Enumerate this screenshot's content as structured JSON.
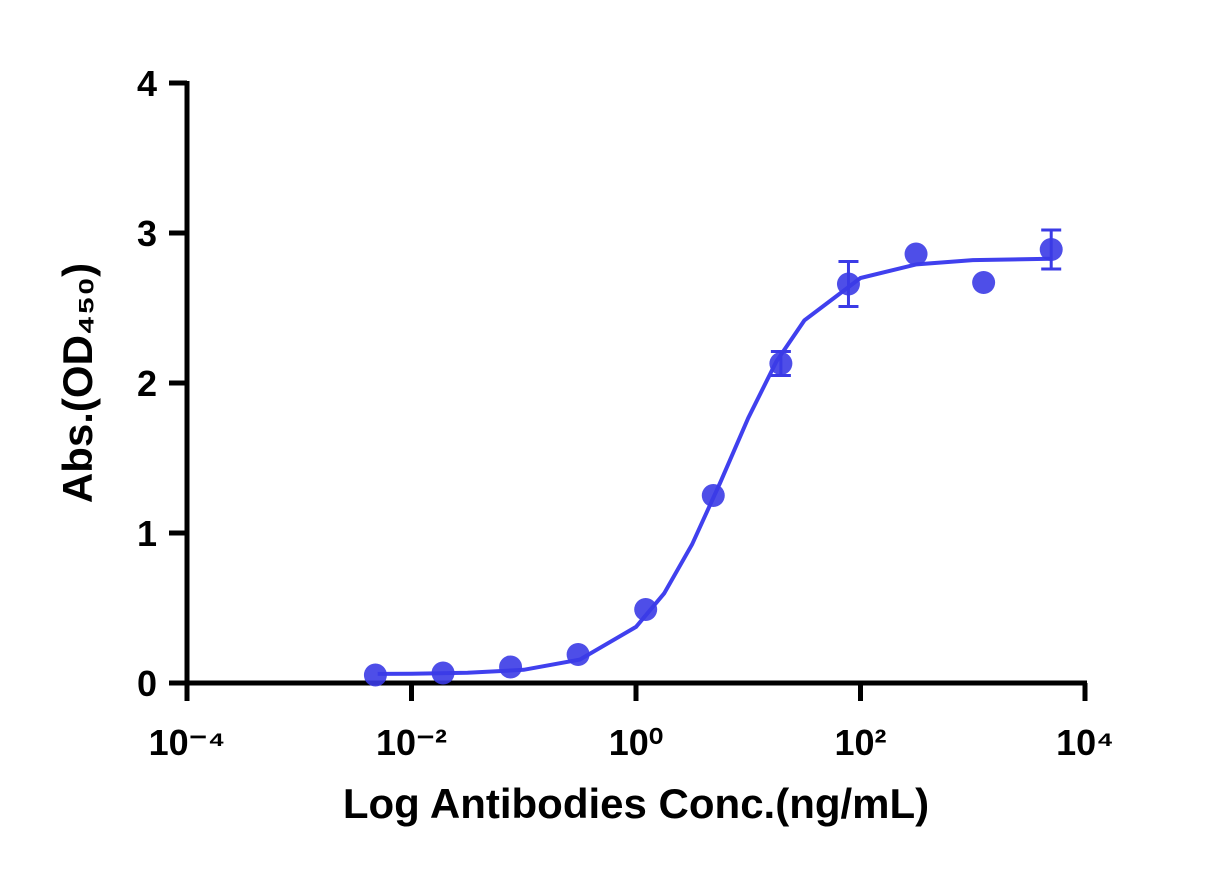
{
  "chart_data": {
    "type": "scatter",
    "x_label": "Log Antibodies Conc.(ng/mL)",
    "y_label": "Abs.(OD₄₅₀)",
    "xscale": "log",
    "xlim": [
      0.0001,
      10000
    ],
    "ylim": [
      0,
      4
    ],
    "xticks": [
      {
        "value": 0.0001,
        "label": "10⁻⁴"
      },
      {
        "value": 0.01,
        "label": "10⁻²"
      },
      {
        "value": 1,
        "label": "10⁰"
      },
      {
        "value": 100,
        "label": "10²"
      },
      {
        "value": 10000,
        "label": "10⁴"
      }
    ],
    "yticks": [
      0,
      1,
      2,
      3,
      4
    ],
    "series": [
      {
        "type": "scatter",
        "color": "#3b3be6",
        "x": [
          0.00477,
          0.0191,
          0.0763,
          0.305,
          1.22,
          4.88,
          19.53,
          78.125,
          312.5,
          1250,
          5000
        ],
        "values": [
          0.053,
          0.067,
          0.107,
          0.19,
          0.49,
          1.25,
          2.13,
          2.66,
          2.86,
          2.67,
          2.89
        ],
        "errors": [
          null,
          null,
          null,
          null,
          null,
          null,
          0.08,
          0.15,
          null,
          null,
          0.13
        ]
      },
      {
        "type": "line",
        "color": "#4040ee",
        "x": [
          0.005,
          0.01,
          0.0316,
          0.1,
          0.316,
          1,
          1.78,
          3.16,
          5.62,
          10,
          17.8,
          31.6,
          100,
          316,
          1000,
          5000
        ],
        "values": [
          0.061,
          0.062,
          0.068,
          0.088,
          0.156,
          0.374,
          0.597,
          0.924,
          1.335,
          1.767,
          2.143,
          2.417,
          2.7,
          2.791,
          2.819,
          2.828
        ]
      }
    ]
  }
}
